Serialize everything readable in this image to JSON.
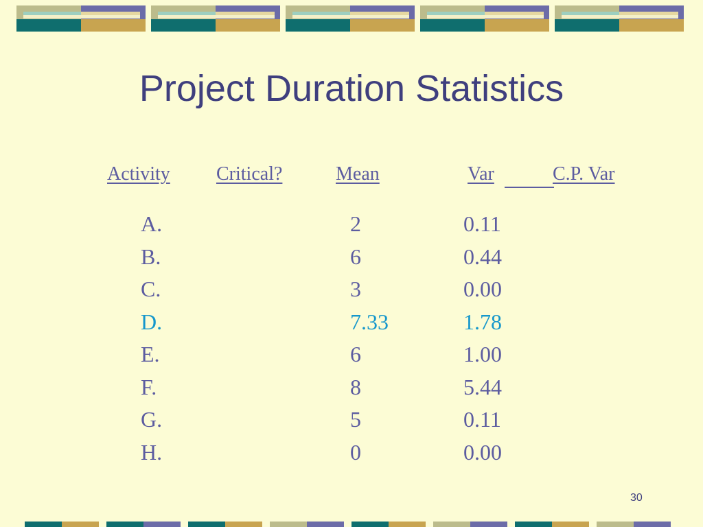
{
  "title": "Project Duration Statistics",
  "table": {
    "headers": [
      "Activity",
      "Critical?",
      "Mean",
      "Var",
      "C.P. Var"
    ],
    "rows": [
      {
        "activity": "A.",
        "mean": "2",
        "var": "0.11",
        "color": "#5c5ca0"
      },
      {
        "activity": "B.",
        "mean": "6",
        "var": "0.44",
        "color": "#5c5ca0"
      },
      {
        "activity": "C.",
        "mean": "3",
        "var": "0.00",
        "color": "#5c5ca0"
      },
      {
        "activity": "D.",
        "mean": "7.33",
        "var": "1.78",
        "color": "#1597cc"
      },
      {
        "activity": "E.",
        "mean": "6",
        "var": "1.00",
        "color": "#5c5ca0"
      },
      {
        "activity": "F.",
        "mean": "8",
        "var": "5.44",
        "color": "#5c5ca0"
      },
      {
        "activity": "G.",
        "mean": "5",
        "var": "0.11",
        "color": "#5c5ca0"
      },
      {
        "activity": "H.",
        "mean": "0",
        "var": "0.00",
        "color": "#5c5ca0"
      }
    ]
  },
  "page_number": "30"
}
